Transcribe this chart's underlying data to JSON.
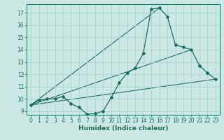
{
  "xlabel": "Humidex (Indice chaleur)",
  "bg_color": "#cce8e4",
  "grid_color": "#aad4cc",
  "line_color": "#1a6b60",
  "xlim": [
    -0.5,
    23.5
  ],
  "ylim": [
    8.7,
    17.7
  ],
  "xticks": [
    0,
    1,
    2,
    3,
    4,
    5,
    6,
    7,
    8,
    9,
    10,
    11,
    12,
    13,
    14,
    15,
    16,
    17,
    18,
    19,
    20,
    21,
    22,
    23
  ],
  "yticks": [
    9,
    10,
    11,
    12,
    13,
    14,
    15,
    16,
    17
  ],
  "main_curve_x": [
    0,
    1,
    2,
    3,
    4,
    5,
    6,
    7,
    8,
    9,
    10,
    11,
    12,
    13,
    14,
    15,
    16,
    17,
    18,
    19,
    20,
    21,
    22,
    23
  ],
  "main_curve_y": [
    9.5,
    9.9,
    10.0,
    10.0,
    10.2,
    9.6,
    9.3,
    8.75,
    8.8,
    9.0,
    10.1,
    11.3,
    12.1,
    12.5,
    13.7,
    17.3,
    17.4,
    16.7,
    14.4,
    14.2,
    14.0,
    12.7,
    12.1,
    11.6
  ],
  "ref_lines": [
    {
      "x": [
        0,
        23
      ],
      "y": [
        9.5,
        11.6
      ]
    },
    {
      "x": [
        0,
        20
      ],
      "y": [
        9.5,
        14.0
      ]
    },
    {
      "x": [
        0,
        16
      ],
      "y": [
        9.5,
        17.4
      ]
    }
  ]
}
